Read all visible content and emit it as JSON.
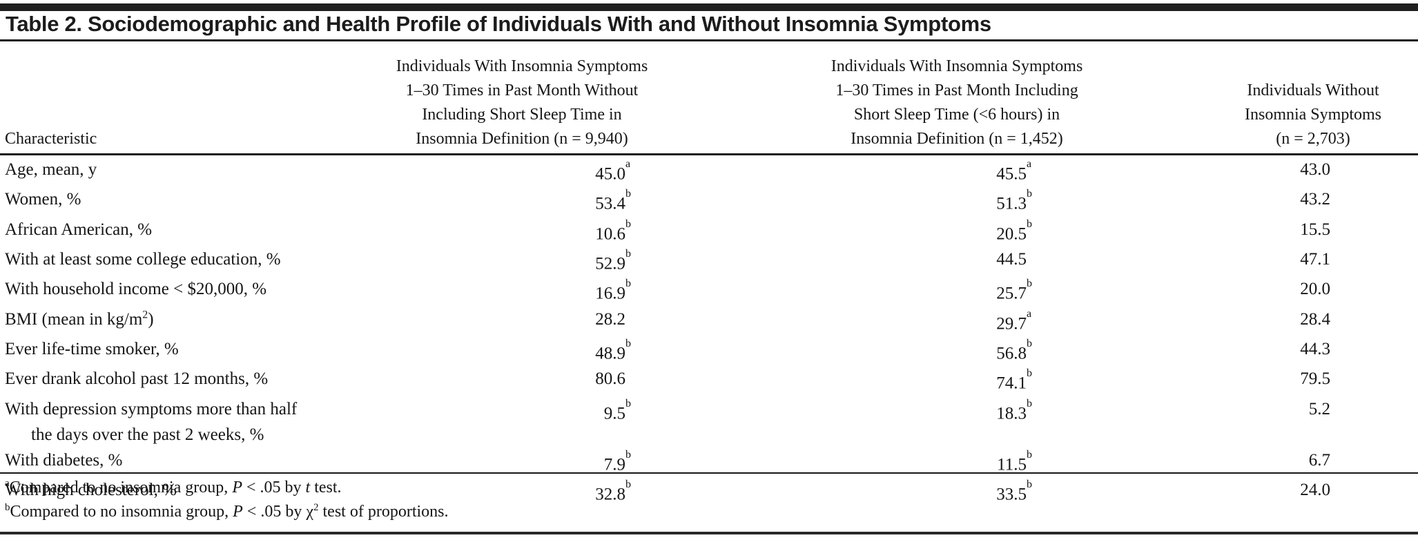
{
  "title": "Table 2. Sociodemographic and Health Profile of Individuals With and Without Insomnia Symptoms",
  "columns": {
    "characteristic": "Characteristic",
    "col1": "Individuals With Insomnia Symptoms\n1–30 Times in Past Month Without\nIncluding Short Sleep Time in\nInsomnia Definition (n = 9,940)",
    "col2": "Individuals With Insomnia Symptoms\n1–30 Times in Past Month Including\nShort Sleep Time (<6 hours) in\nInsomnia Definition (n = 1,452)",
    "col3": "Individuals Without\nInsomnia Symptoms\n(n = 2,703)"
  },
  "rows": [
    {
      "label": "Age, mean, y",
      "c1": "45.0",
      "c1sup": "a",
      "c2": "45.5",
      "c2sup": "a",
      "c3": "43.0"
    },
    {
      "label": "Women, %",
      "c1": "53.4",
      "c1sup": "b",
      "c2": "51.3",
      "c2sup": "b",
      "c3": "43.2"
    },
    {
      "label": "African American, %",
      "c1": "10.6",
      "c1sup": "b",
      "c2": "20.5",
      "c2sup": "b",
      "c3": "15.5"
    },
    {
      "label": "With at least some college education, %",
      "c1": "52.9",
      "c1sup": "b",
      "c2": "44.5",
      "c2sup": "",
      "c3": "47.1"
    },
    {
      "label": "With household income < $20,000, %",
      "c1": "16.9",
      "c1sup": "b",
      "c2": "25.7",
      "c2sup": "b",
      "c3": "20.0"
    },
    {
      "label": "BMI (mean in kg/m",
      "label_sup": "2",
      "label_end": ")",
      "c1": "28.2",
      "c1sup": "",
      "c2": "29.7",
      "c2sup": "a",
      "c3": "28.4"
    },
    {
      "label": "Ever life-time smoker, %",
      "c1": "48.9",
      "c1sup": "b",
      "c2": "56.8",
      "c2sup": "b",
      "c3": "44.3"
    },
    {
      "label": "Ever drank alcohol past 12 months, %",
      "c1": "80.6",
      "c1sup": "",
      "c2": "74.1",
      "c2sup": "b",
      "c3": "79.5"
    },
    {
      "label": "With depression symptoms more than half",
      "label2": "the days over the past 2 weeks, %",
      "c1": "9.5",
      "c1sup": "b",
      "c2": "18.3",
      "c2sup": "b",
      "c3": "5.2"
    },
    {
      "label": "With diabetes, %",
      "c1": "7.9",
      "c1sup": "b",
      "c2": "11.5",
      "c2sup": "b",
      "c3": "6.7"
    },
    {
      "label": "With high cholesterol, %",
      "c1": "32.8",
      "c1sup": "b",
      "c2": "33.5",
      "c2sup": "b",
      "c3": "24.0"
    }
  ],
  "footnotes": [
    {
      "marker": "a",
      "text1": "Compared to no insomnia group, ",
      "p": "P",
      "text2": " < .05 by ",
      "t_italic": "t",
      "chi": "",
      "chi_sup": "",
      "text3": " test."
    },
    {
      "marker": "b",
      "text1": "Compared to no insomnia group, ",
      "p": "P",
      "text2": " < .05 by ",
      "t_italic": "",
      "chi": "χ",
      "chi_sup": "2",
      "text3": " test of proportions."
    }
  ],
  "colors": {
    "text": "#161616",
    "rule": "#1f1f1f",
    "background": "#ffffff"
  }
}
